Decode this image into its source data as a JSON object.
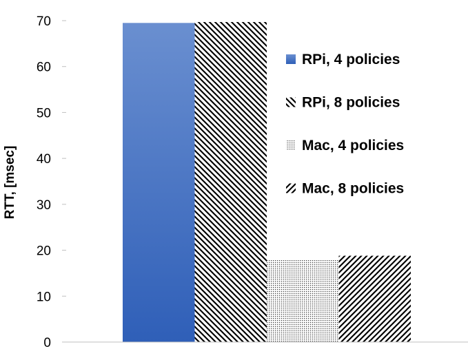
{
  "chart_data": {
    "type": "bar",
    "categories": [
      ""
    ],
    "ylabel": "RTT, [msec]",
    "ylim": [
      0,
      70
    ],
    "yticks": [
      0,
      10,
      20,
      30,
      40,
      50,
      60,
      70
    ],
    "grid": false,
    "legend_position": "right",
    "series": [
      {
        "name": "RPi, 4 policies",
        "values": [
          69.5
        ],
        "color": "#4472C4",
        "fill": "gradient"
      },
      {
        "name": "RPi, 8 policies",
        "values": [
          69.7
        ],
        "color": "#000000",
        "fill": "diagonal-down"
      },
      {
        "name": "Mac, 4 policies",
        "values": [
          18.0
        ],
        "color": "#000000",
        "fill": "dots"
      },
      {
        "name": "Mac, 8 policies",
        "values": [
          18.8
        ],
        "color": "#000000",
        "fill": "diagonal-up"
      }
    ]
  }
}
